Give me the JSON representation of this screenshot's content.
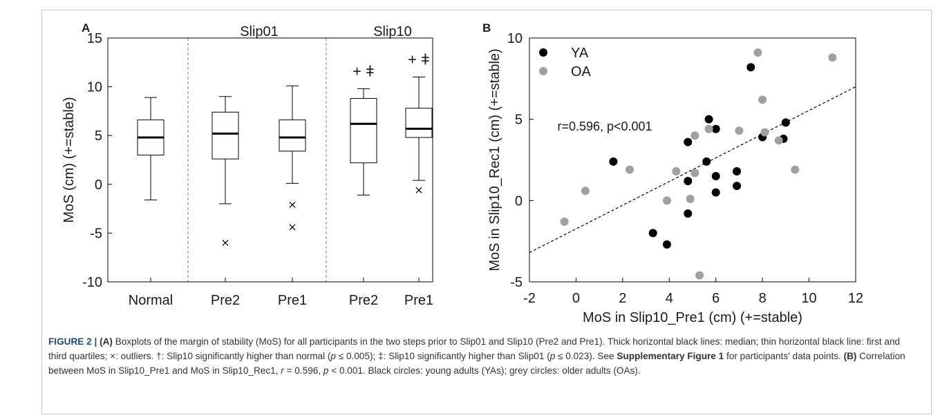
{
  "figure": {
    "caption_label": "FIGURE 2 |",
    "caption_segments": [
      {
        "text": " "
      },
      {
        "text": "(A)",
        "bold": true
      },
      {
        "text": " Boxplots of the margin of stability (MoS) for all participants in the two steps prior to Slip01 and Slip10 (Pre2 and Pre1). Thick horizontal black lines: median; thin horizontal black line: first and third quartiles; ×: outliers. †: Slip10 significantly higher than normal ("
      },
      {
        "text": "p",
        "italic": true
      },
      {
        "text": " ≤ 0.005); ‡: Slip10 significantly higher than Slip01 ("
      },
      {
        "text": "p",
        "italic": true
      },
      {
        "text": " ≤ 0.023). See "
      },
      {
        "text": "Supplementary Figure 1",
        "bold": true
      },
      {
        "text": " for participants' data points. "
      },
      {
        "text": "(B)",
        "bold": true
      },
      {
        "text": " Correlation between MoS in Slip10_Pre1 and MoS in Slip10_Rec1, "
      },
      {
        "text": "r",
        "italic": true
      },
      {
        "text": " = 0.596, "
      },
      {
        "text": "p",
        "italic": true
      },
      {
        "text": " < 0.001. Black circles: young adults (YAs); grey circles: older adults (OAs)."
      }
    ]
  },
  "chart_data": [
    {
      "panel": "A",
      "type": "box",
      "ylabel": "MoS (cm) (+=stable)",
      "ylim": [
        -10,
        15
      ],
      "yticks": [
        -10,
        -5,
        0,
        5,
        10,
        15
      ],
      "groups": [
        {
          "label": "",
          "categories": [
            "Normal"
          ]
        },
        {
          "label": "Slip01",
          "categories": [
            "Pre2",
            "Pre1"
          ]
        },
        {
          "label": "Slip10",
          "categories": [
            "Pre2",
            "Pre1"
          ]
        }
      ],
      "boxes": [
        {
          "category": "Normal",
          "whisker_low": -1.6,
          "q1": 3.0,
          "median": 4.8,
          "q3": 6.6,
          "whisker_high": 8.9,
          "outliers": [],
          "marks": ""
        },
        {
          "category": "Pre2",
          "whisker_low": -2.0,
          "q1": 2.6,
          "median": 5.2,
          "q3": 7.4,
          "whisker_high": 9.0,
          "outliers": [
            -6.0
          ],
          "marks": ""
        },
        {
          "category": "Pre1",
          "whisker_low": 0.1,
          "q1": 3.4,
          "median": 4.8,
          "q3": 6.6,
          "whisker_high": 10.1,
          "outliers": [
            -2.1,
            -4.4
          ],
          "marks": ""
        },
        {
          "category": "Pre2",
          "whisker_low": -1.1,
          "q1": 2.2,
          "median": 6.2,
          "q3": 8.8,
          "whisker_high": 9.8,
          "outliers": [],
          "marks": "+ ǂ"
        },
        {
          "category": "Pre1",
          "whisker_low": 0.4,
          "q1": 4.8,
          "median": 5.7,
          "q3": 7.8,
          "whisker_high": 11.0,
          "outliers": [
            -0.6
          ],
          "marks": "+ ǂ"
        }
      ]
    },
    {
      "panel": "B",
      "type": "scatter",
      "xlabel": "MoS in Slip10_Pre1 (cm) (+=stable)",
      "ylabel": "MoS in Slip10_Rec1 (cm) (+=stable)",
      "xlim": [
        -2,
        12
      ],
      "ylim": [
        -5,
        10
      ],
      "xticks": [
        -2,
        0,
        2,
        4,
        6,
        8,
        10,
        12
      ],
      "yticks": [
        -5,
        0,
        5,
        10
      ],
      "annotation": "r=0.596, p<0.001",
      "legend_position": "top-left",
      "regression_line": {
        "x": [
          -2,
          12
        ],
        "y": [
          -3.2,
          7.0
        ]
      },
      "series": [
        {
          "name": "YA",
          "color": "#000000",
          "points": [
            [
              1.6,
              2.4
            ],
            [
              3.3,
              -2.0
            ],
            [
              3.9,
              -2.7
            ],
            [
              4.8,
              3.6
            ],
            [
              4.8,
              1.2
            ],
            [
              4.8,
              -0.8
            ],
            [
              5.6,
              2.4
            ],
            [
              5.7,
              5.0
            ],
            [
              6.0,
              4.4
            ],
            [
              6.0,
              1.5
            ],
            [
              6.0,
              0.5
            ],
            [
              6.9,
              1.8
            ],
            [
              6.9,
              0.9
            ],
            [
              7.5,
              8.2
            ],
            [
              8.0,
              3.9
            ],
            [
              8.9,
              3.8
            ],
            [
              9.0,
              4.8
            ]
          ]
        },
        {
          "name": "OA",
          "color": "#a0a0a0",
          "points": [
            [
              -0.5,
              -1.3
            ],
            [
              0.4,
              0.6
            ],
            [
              2.3,
              1.9
            ],
            [
              3.9,
              0.0
            ],
            [
              4.3,
              1.8
            ],
            [
              4.9,
              0.1
            ],
            [
              5.1,
              1.7
            ],
            [
              5.1,
              4.0
            ],
            [
              5.3,
              -4.6
            ],
            [
              5.7,
              4.4
            ],
            [
              7.0,
              4.3
            ],
            [
              7.8,
              9.1
            ],
            [
              8.0,
              6.2
            ],
            [
              8.1,
              4.2
            ],
            [
              8.7,
              3.7
            ],
            [
              9.4,
              1.9
            ],
            [
              11.0,
              8.8
            ]
          ]
        }
      ]
    }
  ]
}
